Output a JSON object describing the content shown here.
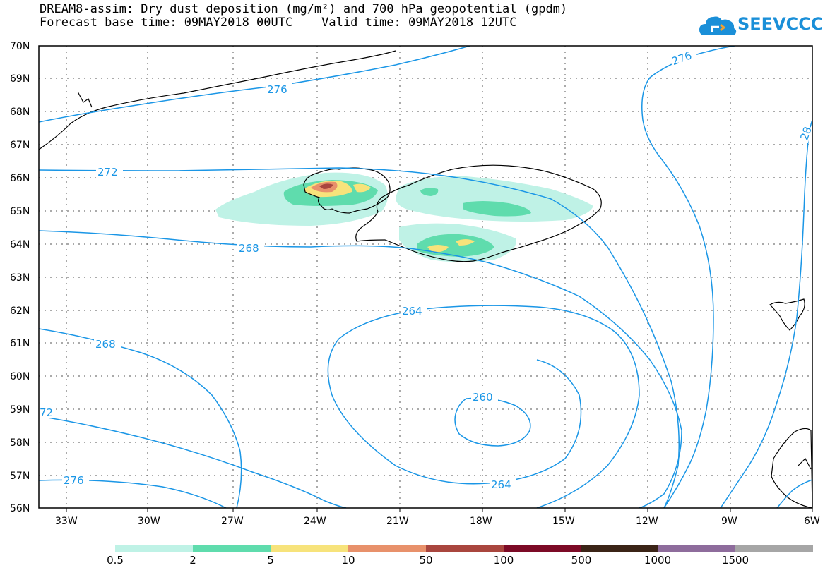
{
  "header": {
    "title_line1": "DREAM8-assim: Dry dust deposition (mg/m²) and 700 hPa geopotential (gpdm)",
    "title_line2": "Forecast base time: 09MAY2018 00UTC    Valid time: 09MAY2018 12UTC"
  },
  "logo": {
    "text": "SEEVCCC",
    "icon": "cloud-logo-icon",
    "color": "#1a8fd8"
  },
  "map": {
    "lat_labels": [
      "70N",
      "69N",
      "68N",
      "67N",
      "66N",
      "65N",
      "64N",
      "63N",
      "62N",
      "61N",
      "60N",
      "59N",
      "58N",
      "57N",
      "56N"
    ],
    "lon_labels": [
      "33W",
      "30W",
      "27W",
      "24W",
      "21W",
      "18W",
      "15W",
      "12W",
      "9W",
      "6W"
    ],
    "contour_labels": {
      "c276_top": "276",
      "c276_right": "276",
      "c28_right": "28",
      "c272": "272",
      "c268_mid": "268",
      "c268_left": "268",
      "c264_top": "264",
      "c264_bottom": "264",
      "c260": "260",
      "c72_left": "72",
      "c276_bottom": "276"
    },
    "contour_color": "#1a96e6"
  },
  "colorbar": {
    "labels": [
      "0.5",
      "2",
      "5",
      "10",
      "50",
      "100",
      "500",
      "1000",
      "1500"
    ],
    "colors": [
      "#bff2e6",
      "#5fdcad",
      "#f7e37b",
      "#e8916b",
      "#a9463e",
      "#7c0a26",
      "#3b2417",
      "#8e6c9c",
      "#a6a6a6"
    ]
  }
}
